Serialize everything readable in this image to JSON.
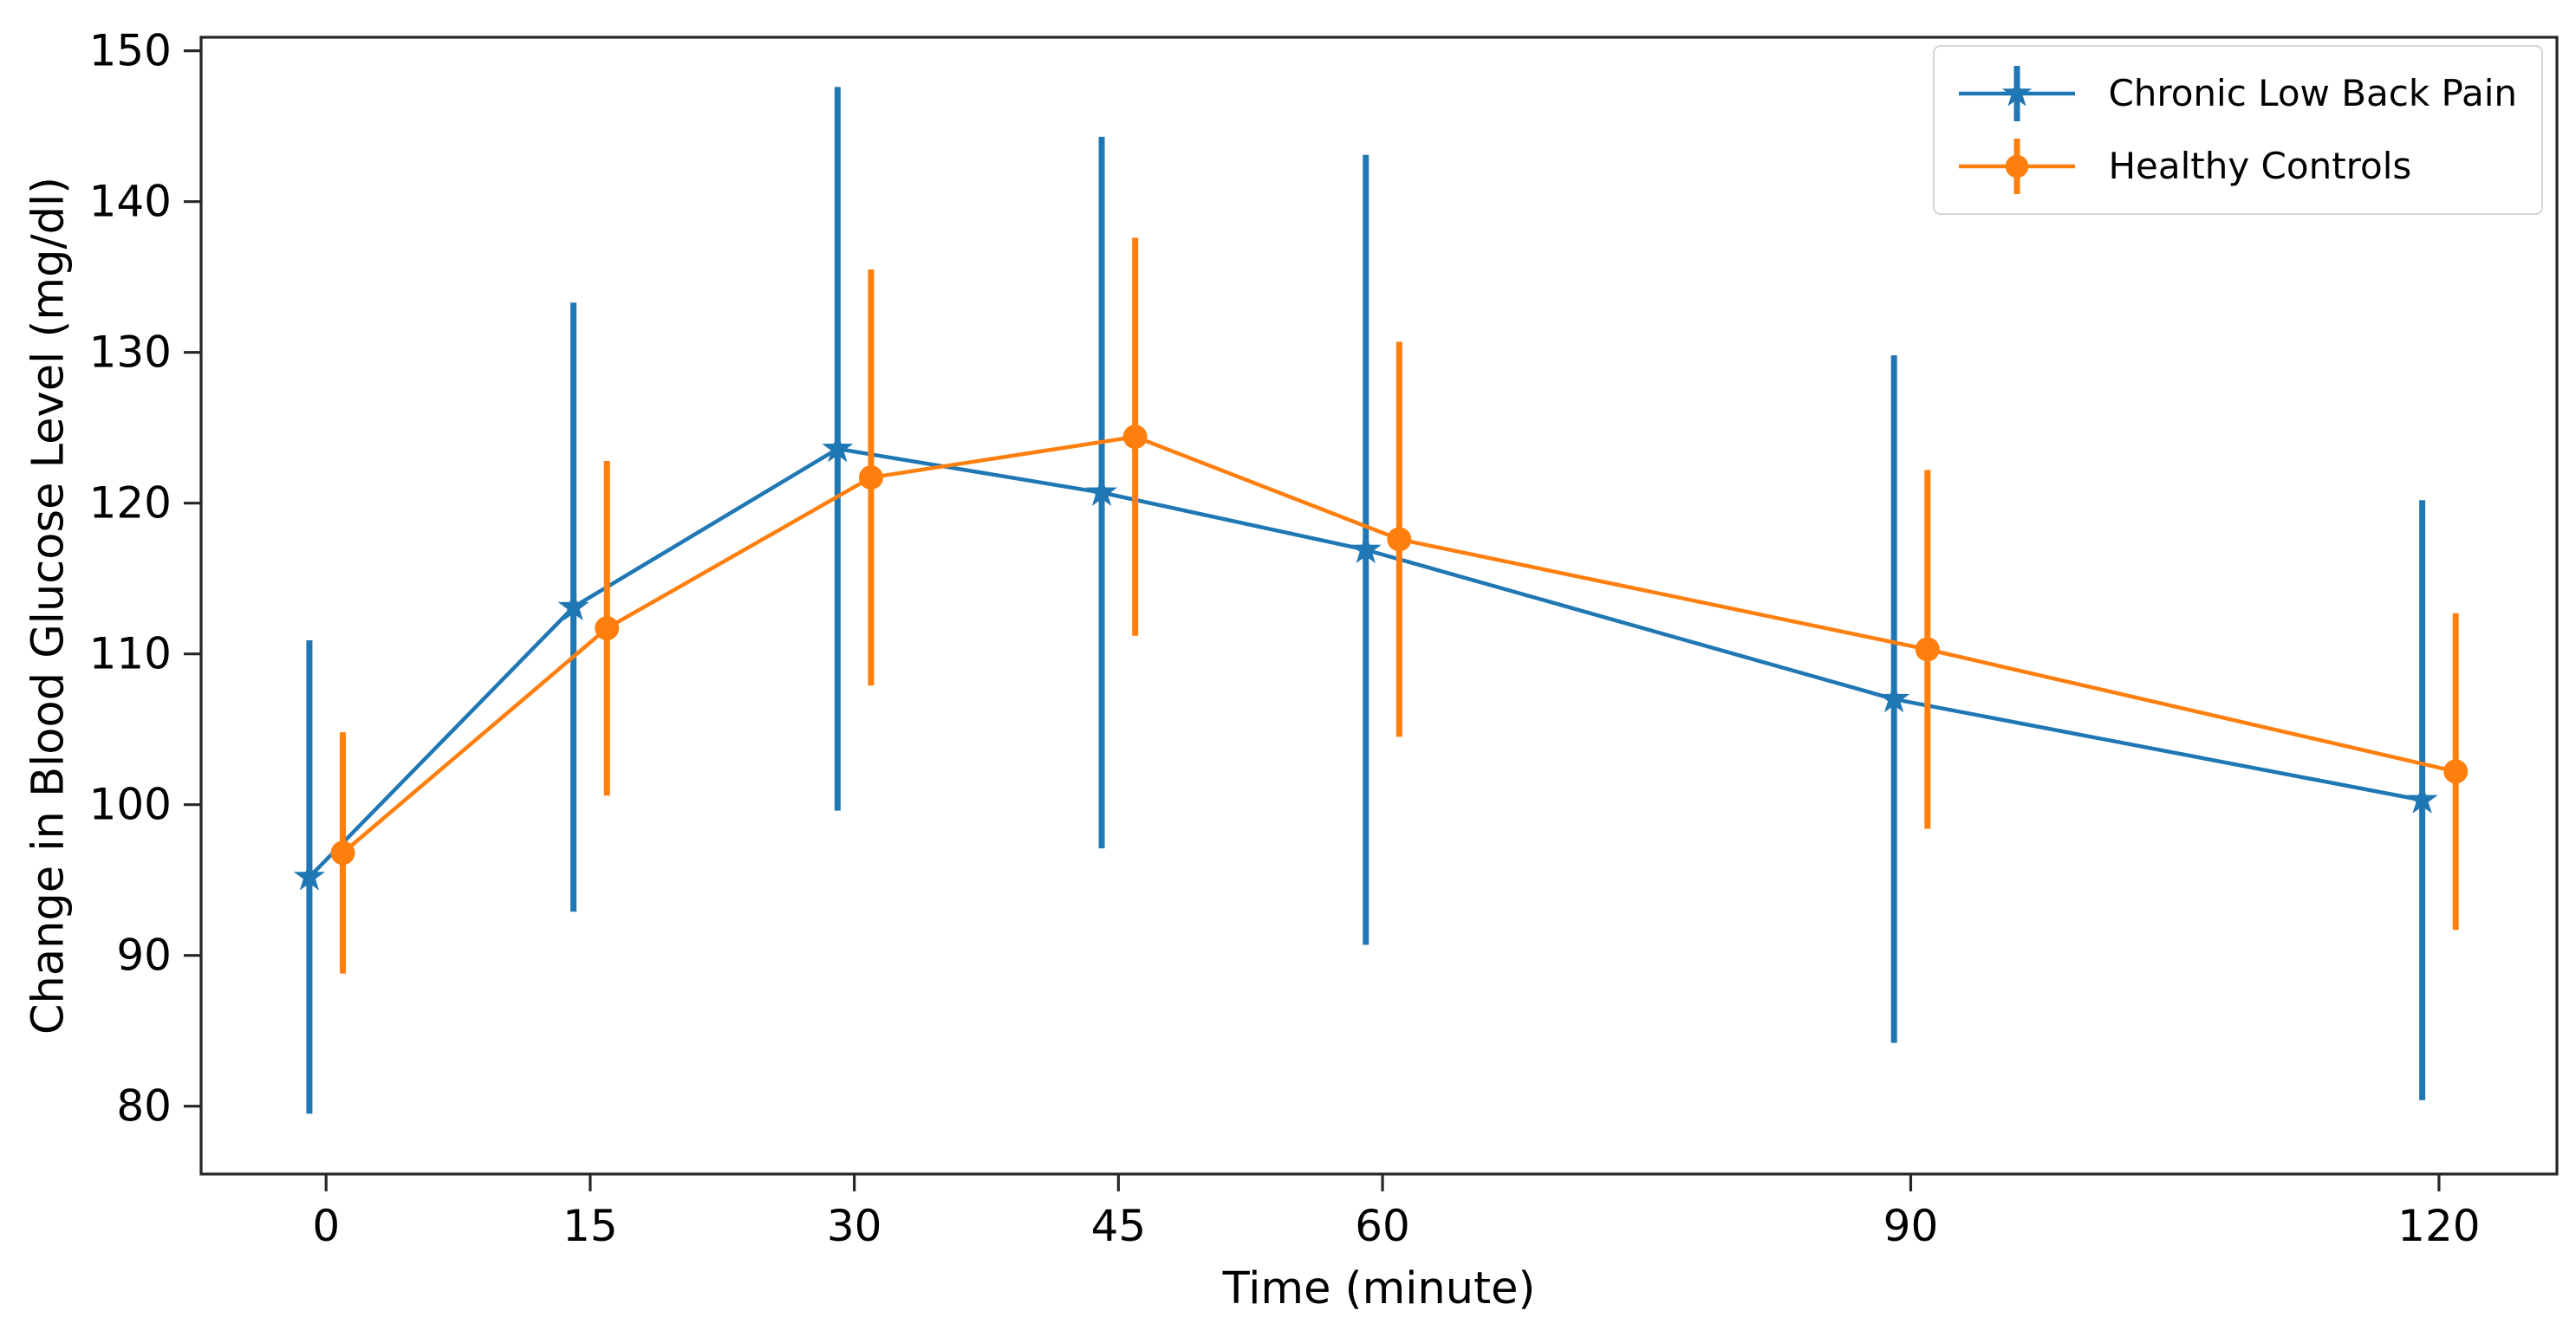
{
  "figure": {
    "background": "#ffffff",
    "axis_color": "#262626",
    "text_color": "#000000"
  },
  "chart_data": {
    "type": "line",
    "title": "",
    "xlabel": "Time (minute)",
    "ylabel": "Change in Blood Glucose Level (mg/dl)",
    "x": [
      0,
      15,
      30,
      45,
      60,
      90,
      120
    ],
    "x_ticks": [
      "0",
      "15",
      "30",
      "45",
      "60",
      "90",
      "120"
    ],
    "y_ticks": [
      80,
      90,
      100,
      110,
      120,
      130,
      140,
      150
    ],
    "xlim": [
      -7.1,
      126.7
    ],
    "ylim": [
      75.5,
      150.9
    ],
    "grid": false,
    "error_bars": true,
    "error_bar_caps": false,
    "x_dodge_minutes": 0.95,
    "legend_position": "upper-right",
    "series": [
      {
        "name": "Chronic Low Back Pain",
        "color": "#1f77b4",
        "marker": "star",
        "dodge_direction": -1,
        "values": [
          95.2,
          113.1,
          123.6,
          120.7,
          116.9,
          107.0,
          100.3
        ],
        "errors": [
          15.7,
          20.2,
          24.0,
          23.6,
          26.2,
          22.8,
          19.9
        ]
      },
      {
        "name": "Healthy Controls",
        "color": "#ff7f0e",
        "marker": "circle",
        "dodge_direction": 1,
        "values": [
          96.8,
          111.7,
          121.7,
          124.4,
          117.6,
          110.3,
          102.2
        ],
        "errors": [
          8.0,
          11.1,
          13.8,
          13.2,
          13.1,
          11.9,
          10.5
        ]
      }
    ]
  }
}
